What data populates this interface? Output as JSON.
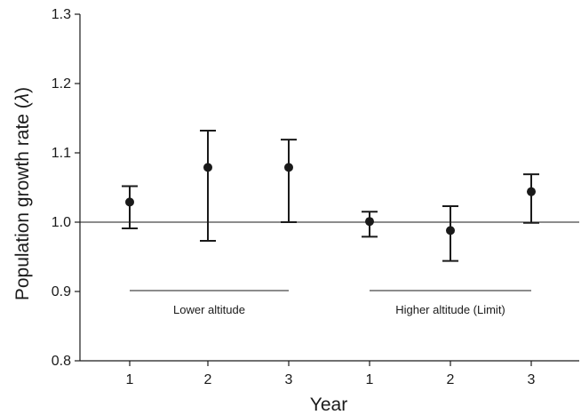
{
  "chart_data": {
    "type": "scatter",
    "title": "",
    "xlabel": "Year",
    "ylabel_prefix": "Population growth rate (",
    "ylabel_symbol": "λ",
    "ylabel_suffix": ")",
    "ylim": [
      0.8,
      1.3
    ],
    "yticks": [
      "0.8",
      "0.9",
      "1.0",
      "1.1",
      "1.2",
      "1.3"
    ],
    "reference_line": 1.0,
    "grid": false,
    "groups": [
      {
        "label": "Lower altitude",
        "points": [
          {
            "x_label": "1",
            "y": 1.029,
            "lower": 0.991,
            "upper": 1.052
          },
          {
            "x_label": "2",
            "y": 1.079,
            "lower": 0.973,
            "upper": 1.132
          },
          {
            "x_label": "3",
            "y": 1.079,
            "lower": 1.0,
            "upper": 1.119
          }
        ]
      },
      {
        "label": "Higher altitude (Limit)",
        "points": [
          {
            "x_label": "1",
            "y": 1.001,
            "lower": 0.979,
            "upper": 1.015
          },
          {
            "x_label": "2",
            "y": 0.988,
            "lower": 0.944,
            "upper": 1.023
          },
          {
            "x_label": "3",
            "y": 1.044,
            "lower": 0.999,
            "upper": 1.069
          }
        ]
      }
    ]
  }
}
